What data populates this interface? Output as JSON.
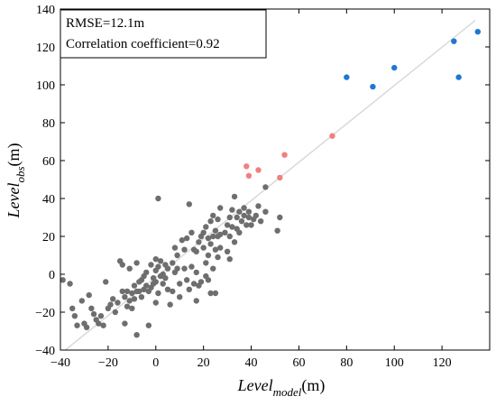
{
  "chart_data": {
    "type": "scatter",
    "xlabel": {
      "main": "Level",
      "sub": "model",
      "unit": "(m)"
    },
    "ylabel": {
      "main": "Level",
      "sub": "obs",
      "unit": "(m)"
    },
    "xlim": [
      -40,
      140
    ],
    "ylim": [
      -40,
      140
    ],
    "xticks": [
      "-40",
      "-20",
      "0",
      "20",
      "40",
      "60",
      "80",
      "100",
      "120"
    ],
    "yticks": [
      "-40",
      "-20",
      "0",
      "20",
      "40",
      "60",
      "80",
      "100",
      "120",
      "140"
    ],
    "grid": false,
    "annotations": [
      "RMSE=12.1m",
      "Correlation coefficient=0.92"
    ],
    "fit_line": {
      "color": "#d9d9d9",
      "x": [
        -38,
        134
      ],
      "y": [
        -40,
        134
      ]
    },
    "series": [
      {
        "color": "#6e6e6e",
        "points": [
          [
            -39,
            -3
          ],
          [
            -36,
            -5
          ],
          [
            -35,
            -18
          ],
          [
            -34,
            -22
          ],
          [
            -33,
            -27
          ],
          [
            -31,
            -14
          ],
          [
            -30,
            -26
          ],
          [
            -29,
            -28
          ],
          [
            -28,
            -11
          ],
          [
            -27,
            -18
          ],
          [
            -26,
            -21
          ],
          [
            -25,
            -24
          ],
          [
            -24,
            -26
          ],
          [
            -23,
            -22
          ],
          [
            -22,
            -27
          ],
          [
            -21,
            -4
          ],
          [
            -20,
            -18
          ],
          [
            -19,
            -16
          ],
          [
            -18,
            -13
          ],
          [
            -17,
            -20
          ],
          [
            -16,
            -15
          ],
          [
            -15,
            7
          ],
          [
            -14,
            5
          ],
          [
            -14,
            -9
          ],
          [
            -13,
            -12
          ],
          [
            -13,
            -26
          ],
          [
            -12,
            -17
          ],
          [
            -12,
            -9
          ],
          [
            -11,
            -14
          ],
          [
            -11,
            3
          ],
          [
            -10,
            -10
          ],
          [
            -10,
            -18
          ],
          [
            -9,
            -6
          ],
          [
            -9,
            -13
          ],
          [
            -8,
            -9
          ],
          [
            -8,
            -32
          ],
          [
            -8,
            6
          ],
          [
            -7,
            -4
          ],
          [
            -7,
            -9
          ],
          [
            -6,
            -12
          ],
          [
            -6,
            -3
          ],
          [
            -5,
            -8
          ],
          [
            -5,
            -1
          ],
          [
            -4,
            -6
          ],
          [
            -4,
            1
          ],
          [
            -3,
            -9
          ],
          [
            -3,
            -27
          ],
          [
            -2,
            -7
          ],
          [
            -2,
            5
          ],
          [
            -1,
            -2
          ],
          [
            -1,
            -5
          ],
          [
            0,
            -4
          ],
          [
            0,
            2
          ],
          [
            0,
            8
          ],
          [
            0,
            -15
          ],
          [
            1,
            40
          ],
          [
            1,
            4
          ],
          [
            1,
            -10
          ],
          [
            2,
            -1
          ],
          [
            2,
            7
          ],
          [
            3,
            -5
          ],
          [
            3,
            0
          ],
          [
            4,
            -2
          ],
          [
            4,
            5
          ],
          [
            5,
            -8
          ],
          [
            5,
            3
          ],
          [
            6,
            -16
          ],
          [
            7,
            6
          ],
          [
            7,
            -9
          ],
          [
            8,
            1
          ],
          [
            8,
            14
          ],
          [
            9,
            3
          ],
          [
            9,
            10
          ],
          [
            10,
            -5
          ],
          [
            10,
            -12
          ],
          [
            11,
            18
          ],
          [
            12,
            3
          ],
          [
            12,
            13
          ],
          [
            13,
            19
          ],
          [
            13,
            -3
          ],
          [
            14,
            37
          ],
          [
            14,
            -8
          ],
          [
            15,
            4
          ],
          [
            15,
            22
          ],
          [
            16,
            -5
          ],
          [
            16,
            13
          ],
          [
            17,
            1
          ],
          [
            17,
            12
          ],
          [
            17,
            -14
          ],
          [
            18,
            17
          ],
          [
            18,
            -6
          ],
          [
            19,
            20
          ],
          [
            19,
            -4
          ],
          [
            20,
            14
          ],
          [
            20,
            22
          ],
          [
            21,
            6
          ],
          [
            21,
            -1
          ],
          [
            21,
            25
          ],
          [
            22,
            10
          ],
          [
            22,
            19
          ],
          [
            22,
            -3
          ],
          [
            23,
            16
          ],
          [
            23,
            28
          ],
          [
            23,
            -10
          ],
          [
            24,
            20
          ],
          [
            24,
            31
          ],
          [
            24,
            3
          ],
          [
            25,
            13
          ],
          [
            25,
            -10
          ],
          [
            25,
            23
          ],
          [
            26,
            20
          ],
          [
            26,
            29
          ],
          [
            26,
            9
          ],
          [
            27,
            35
          ],
          [
            27,
            21
          ],
          [
            27,
            14
          ],
          [
            29,
            22
          ],
          [
            30,
            12
          ],
          [
            30,
            26
          ],
          [
            31,
            8
          ],
          [
            31,
            30
          ],
          [
            31,
            20
          ],
          [
            32,
            34
          ],
          [
            32,
            25
          ],
          [
            33,
            41
          ],
          [
            33,
            17
          ],
          [
            34,
            30
          ],
          [
            34,
            24
          ],
          [
            35,
            22
          ],
          [
            35,
            33
          ],
          [
            36,
            28
          ],
          [
            37,
            35
          ],
          [
            37,
            31
          ],
          [
            38,
            26
          ],
          [
            39,
            30
          ],
          [
            39,
            33
          ],
          [
            40,
            26
          ],
          [
            41,
            29
          ],
          [
            42,
            31
          ],
          [
            43,
            36
          ],
          [
            44,
            28
          ],
          [
            46,
            46
          ],
          [
            46,
            33
          ],
          [
            51,
            23
          ],
          [
            52,
            30
          ]
        ]
      },
      {
        "color": "#f08080",
        "points": [
          [
            38,
            57
          ],
          [
            39,
            52
          ],
          [
            43,
            55
          ],
          [
            52,
            51
          ],
          [
            54,
            63
          ],
          [
            74,
            73
          ]
        ]
      },
      {
        "color": "#1e78d2",
        "points": [
          [
            80,
            104
          ],
          [
            91,
            99
          ],
          [
            100,
            109
          ],
          [
            125,
            123
          ],
          [
            127,
            104
          ],
          [
            135,
            128
          ]
        ]
      }
    ]
  }
}
